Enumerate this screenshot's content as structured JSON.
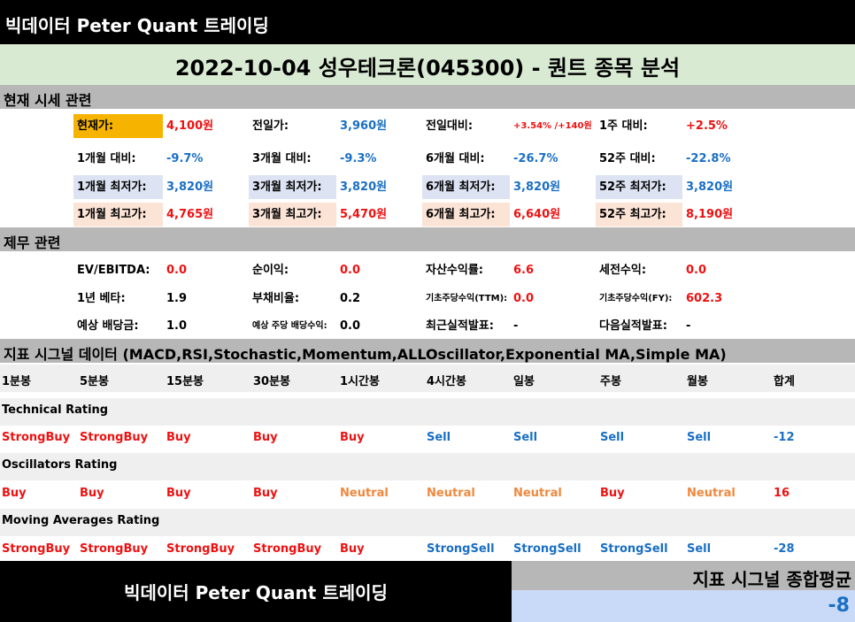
{
  "header": {
    "brand": "빅데이터 Peter Quant 트레이딩",
    "title": "2022-10-04 성우테크론(045300) - 퀀트 종목 분석"
  },
  "price_section": {
    "title": "현재 시세 관련",
    "rows": [
      [
        {
          "label": "현재가:",
          "value": "4,100원"
        },
        {
          "label": "전일가:",
          "value": "3,960원"
        },
        {
          "label": "전일대비:",
          "value": "+3.54% /+140원"
        },
        {
          "label": "1주 대비:",
          "value": "+2.5%"
        }
      ],
      [
        {
          "label": "1개월 대비:",
          "value": "-9.7%"
        },
        {
          "label": "3개월 대비:",
          "value": "-9.3%"
        },
        {
          "label": "6개월 대비:",
          "value": "-26.7%"
        },
        {
          "label": "52주 대비:",
          "value": "-22.8%"
        }
      ],
      [
        {
          "label": "1개월 최저가:",
          "value": "3,820원"
        },
        {
          "label": "3개월 최저가:",
          "value": "3,820원"
        },
        {
          "label": "6개월 최저가:",
          "value": "3,820원"
        },
        {
          "label": "52주 최저가:",
          "value": "3,820원"
        }
      ],
      [
        {
          "label": "1개월 최고가:",
          "value": "4,765원"
        },
        {
          "label": "3개월 최고가:",
          "value": "5,470원"
        },
        {
          "label": "6개월 최고가:",
          "value": "6,640원"
        },
        {
          "label": "52주 최고가:",
          "value": "8,190원"
        }
      ]
    ]
  },
  "finance_section": {
    "title": "제무 관련",
    "rows": [
      [
        {
          "label": "EV/EBITDA:",
          "value": "0.0"
        },
        {
          "label": "순이익:",
          "value": "0.0"
        },
        {
          "label": "자산수익률:",
          "value": "6.6"
        },
        {
          "label": "세전수익:",
          "value": "0.0"
        }
      ],
      [
        {
          "label": "1년 베타:",
          "value": "1.9"
        },
        {
          "label": "부채비율:",
          "value": "0.2"
        },
        {
          "label": "기초주당수익(TTM):",
          "value": "0.0"
        },
        {
          "label": "기초주당수익(FY):",
          "value": "602.3"
        }
      ],
      [
        {
          "label": "예상 배당금:",
          "value": "1.0"
        },
        {
          "label": "예상 주당 배당수익:",
          "value": "0.0"
        },
        {
          "label": "최근실적발표:",
          "value": "-"
        },
        {
          "label": "다음실적발표:",
          "value": "-"
        }
      ]
    ]
  },
  "signal_section": {
    "title": "지표 시그널 데이터 (MACD,RSI,Stochastic,Momentum,ALLOscillator,Exponential MA,Simple MA)",
    "columns": [
      "1분봉",
      "5분봉",
      "15분봉",
      "30분봉",
      "1시간봉",
      "4시간봉",
      "일봉",
      "주봉",
      "월봉",
      "합계"
    ],
    "ratings": [
      {
        "name": "Technical Rating",
        "values": [
          "StrongBuy",
          "StrongBuy",
          "Buy",
          "Buy",
          "Buy",
          "Sell",
          "Sell",
          "Sell",
          "Sell",
          "-12"
        ]
      },
      {
        "name": "Oscillators Rating",
        "values": [
          "Buy",
          "Buy",
          "Buy",
          "Buy",
          "Neutral",
          "Neutral",
          "Neutral",
          "Buy",
          "Neutral",
          "16"
        ]
      },
      {
        "name": "Moving Averages Rating",
        "values": [
          "StrongBuy",
          "StrongBuy",
          "StrongBuy",
          "StrongBuy",
          "Buy",
          "StrongSell",
          "StrongSell",
          "StrongSell",
          "Sell",
          "-28"
        ]
      }
    ]
  },
  "footer": {
    "brand": "빅데이터 Peter Quant 트레이딩",
    "summary_label": "지표 시그널 종합평균",
    "summary_value": "-8"
  },
  "colors": {
    "buy": "#ee1111",
    "sell": "#1a6fc4",
    "neutral": "#f0883e",
    "highlight_current": "#f6b400",
    "highlight_low": "#dde3f3",
    "highlight_high": "#fbe3d6"
  }
}
